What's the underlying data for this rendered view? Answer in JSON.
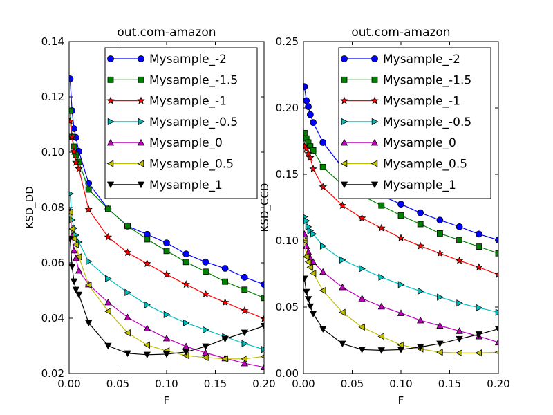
{
  "chart_data": [
    {
      "type": "line",
      "title": "out.com-amazon",
      "xlabel": "F",
      "ylabel": "KSD_DD",
      "xlim": [
        0,
        0.2
      ],
      "ylim": [
        0.02,
        0.14
      ],
      "xticks": [
        "0.00",
        "0.05",
        "0.10",
        "0.15",
        "0.20"
      ],
      "yticks": [
        "0.02",
        "0.04",
        "0.06",
        "0.08",
        "0.10",
        "0.12",
        "0.14"
      ],
      "grid": false,
      "legend": "top-right",
      "series": [
        {
          "name": "Mysample_-2",
          "color": "#0000ff",
          "marker": "circle",
          "x": [
            0.001,
            0.003,
            0.005,
            0.007,
            0.01,
            0.02,
            0.04,
            0.06,
            0.08,
            0.1,
            0.12,
            0.14,
            0.16,
            0.18,
            0.2
          ],
          "y": [
            0.1265,
            0.115,
            0.1085,
            0.1053,
            0.1003,
            0.0888,
            0.0795,
            0.0733,
            0.0703,
            0.0672,
            0.0632,
            0.0603,
            0.058,
            0.0548,
            0.0522
          ]
        },
        {
          "name": "Mysample_-1.5",
          "color": "#008000",
          "marker": "square",
          "x": [
            0.001,
            0.003,
            0.005,
            0.007,
            0.01,
            0.02,
            0.04,
            0.06,
            0.08,
            0.1,
            0.12,
            0.14,
            0.16,
            0.18,
            0.2
          ],
          "y": [
            0.115,
            0.1055,
            0.102,
            0.099,
            0.0965,
            0.0865,
            0.0795,
            0.0733,
            0.0685,
            0.0643,
            0.0603,
            0.0568,
            0.0532,
            0.0503,
            0.0473
          ]
        },
        {
          "name": "Mysample_-1",
          "color": "#ff0000",
          "marker": "star",
          "x": [
            0.001,
            0.003,
            0.005,
            0.007,
            0.01,
            0.02,
            0.04,
            0.06,
            0.08,
            0.1,
            0.12,
            0.14,
            0.16,
            0.18,
            0.2
          ],
          "y": [
            0.1112,
            0.1055,
            0.1002,
            0.0963,
            0.094,
            0.0793,
            0.0693,
            0.0637,
            0.0597,
            0.0558,
            0.0522,
            0.0487,
            0.0457,
            0.0427,
            0.0398
          ]
        },
        {
          "name": "Mysample_-0.5",
          "color": "#00bfbf",
          "marker": "triangle-right",
          "x": [
            0.001,
            0.003,
            0.005,
            0.007,
            0.01,
            0.02,
            0.04,
            0.06,
            0.08,
            0.1,
            0.12,
            0.14,
            0.16,
            0.18,
            0.2
          ],
          "y": [
            0.085,
            0.0755,
            0.0725,
            0.07,
            0.0675,
            0.0605,
            0.0543,
            0.0493,
            0.0448,
            0.0413,
            0.0383,
            0.0358,
            0.0333,
            0.0308,
            0.0287
          ]
        },
        {
          "name": "Mysample_0",
          "color": "#bf00bf",
          "marker": "triangle-up",
          "x": [
            0.001,
            0.003,
            0.005,
            0.007,
            0.01,
            0.02,
            0.04,
            0.06,
            0.08,
            0.1,
            0.12,
            0.14,
            0.16,
            0.18,
            0.2
          ],
          "y": [
            0.0785,
            0.0697,
            0.0645,
            0.0617,
            0.0572,
            0.0522,
            0.0457,
            0.0403,
            0.0363,
            0.0327,
            0.0298,
            0.0275,
            0.0255,
            0.0237,
            0.0223
          ]
        },
        {
          "name": "Mysample_0.5",
          "color": "#bfbf00",
          "marker": "triangle-left",
          "x": [
            0.001,
            0.003,
            0.005,
            0.007,
            0.01,
            0.02,
            0.04,
            0.06,
            0.08,
            0.1,
            0.12,
            0.14,
            0.16,
            0.18,
            0.2
          ],
          "y": [
            0.0783,
            0.0723,
            0.0687,
            0.0665,
            0.0622,
            0.052,
            0.0425,
            0.0347,
            0.0303,
            0.0282,
            0.0265,
            0.0258,
            0.0253,
            0.0253,
            0.0262
          ]
        },
        {
          "name": "Mysample_1",
          "color": "#000000",
          "marker": "triangle-down",
          "x": [
            0.001,
            0.003,
            0.005,
            0.007,
            0.01,
            0.02,
            0.04,
            0.06,
            0.08,
            0.1,
            0.12,
            0.14,
            0.16,
            0.18,
            0.2
          ],
          "y": [
            0.0687,
            0.0587,
            0.0533,
            0.0503,
            0.0485,
            0.0383,
            0.03,
            0.0273,
            0.0268,
            0.027,
            0.0278,
            0.0298,
            0.0325,
            0.0348,
            0.0372
          ]
        }
      ]
    },
    {
      "type": "line",
      "title": "out.com-amazon",
      "xlabel": "F",
      "ylabel": "KSD_CCD",
      "xlim": [
        0,
        0.2
      ],
      "ylim": [
        0,
        0.25
      ],
      "xticks": [
        "0.00",
        "0.05",
        "0.10",
        "0.15",
        "0.20"
      ],
      "yticks": [
        "0.00",
        "0.05",
        "0.10",
        "0.15",
        "0.20",
        "0.25"
      ],
      "grid": false,
      "legend": "top-right",
      "series": [
        {
          "name": "Mysample_-2",
          "color": "#0000ff",
          "marker": "circle",
          "x": [
            0.001,
            0.003,
            0.005,
            0.007,
            0.01,
            0.02,
            0.04,
            0.06,
            0.08,
            0.1,
            0.12,
            0.14,
            0.16,
            0.18,
            0.2
          ],
          "y": [
            0.216,
            0.2055,
            0.201,
            0.195,
            0.189,
            0.174,
            0.155,
            0.143,
            0.134,
            0.1275,
            0.121,
            0.1155,
            0.1105,
            0.105,
            0.1005
          ]
        },
        {
          "name": "Mysample_-1.5",
          "color": "#008000",
          "marker": "square",
          "x": [
            0.001,
            0.003,
            0.005,
            0.007,
            0.01,
            0.02,
            0.04,
            0.06,
            0.08,
            0.1,
            0.12,
            0.14,
            0.16,
            0.18,
            0.2
          ],
          "y": [
            0.181,
            0.177,
            0.174,
            0.171,
            0.168,
            0.1555,
            0.142,
            0.134,
            0.1265,
            0.119,
            0.1125,
            0.1055,
            0.1005,
            0.0955,
            0.0905
          ]
        },
        {
          "name": "Mysample_-1",
          "color": "#ff0000",
          "marker": "star",
          "x": [
            0.001,
            0.003,
            0.005,
            0.007,
            0.01,
            0.02,
            0.04,
            0.06,
            0.08,
            0.1,
            0.12,
            0.14,
            0.16,
            0.18,
            0.2
          ],
          "y": [
            0.171,
            0.169,
            0.1655,
            0.1625,
            0.154,
            0.1405,
            0.1265,
            0.117,
            0.1095,
            0.102,
            0.096,
            0.0905,
            0.085,
            0.08,
            0.0745
          ]
        },
        {
          "name": "Mysample_-0.5",
          "color": "#00bfbf",
          "marker": "triangle-right",
          "x": [
            0.001,
            0.003,
            0.005,
            0.007,
            0.01,
            0.02,
            0.04,
            0.06,
            0.08,
            0.1,
            0.12,
            0.14,
            0.16,
            0.18,
            0.2
          ],
          "y": [
            0.118,
            0.115,
            0.1105,
            0.1075,
            0.105,
            0.096,
            0.0855,
            0.079,
            0.0725,
            0.067,
            0.062,
            0.0575,
            0.053,
            0.0495,
            0.046
          ]
        },
        {
          "name": "Mysample_0",
          "color": "#bf00bf",
          "marker": "triangle-up",
          "x": [
            0.001,
            0.003,
            0.005,
            0.007,
            0.01,
            0.02,
            0.04,
            0.06,
            0.08,
            0.1,
            0.12,
            0.14,
            0.16,
            0.18,
            0.2
          ],
          "y": [
            0.105,
            0.096,
            0.0915,
            0.087,
            0.084,
            0.0765,
            0.065,
            0.0565,
            0.0505,
            0.0455,
            0.04,
            0.036,
            0.032,
            0.028,
            0.0235
          ]
        },
        {
          "name": "Mysample_0.5",
          "color": "#bfbf00",
          "marker": "triangle-left",
          "x": [
            0.001,
            0.003,
            0.005,
            0.007,
            0.01,
            0.02,
            0.04,
            0.06,
            0.08,
            0.1,
            0.12,
            0.14,
            0.16,
            0.18,
            0.2
          ],
          "y": [
            0.1,
            0.088,
            0.084,
            0.08,
            0.0755,
            0.0625,
            0.046,
            0.035,
            0.028,
            0.0215,
            0.0185,
            0.016,
            0.0155,
            0.0155,
            0.016
          ]
        },
        {
          "name": "Mysample_1",
          "color": "#000000",
          "marker": "triangle-down",
          "x": [
            0.001,
            0.003,
            0.005,
            0.007,
            0.01,
            0.02,
            0.04,
            0.06,
            0.08,
            0.1,
            0.12,
            0.14,
            0.16,
            0.18,
            0.2
          ],
          "y": [
            0.0715,
            0.0615,
            0.056,
            0.0505,
            0.045,
            0.0335,
            0.0225,
            0.018,
            0.0175,
            0.018,
            0.02,
            0.0225,
            0.026,
            0.0295,
            0.0335
          ]
        }
      ]
    }
  ]
}
